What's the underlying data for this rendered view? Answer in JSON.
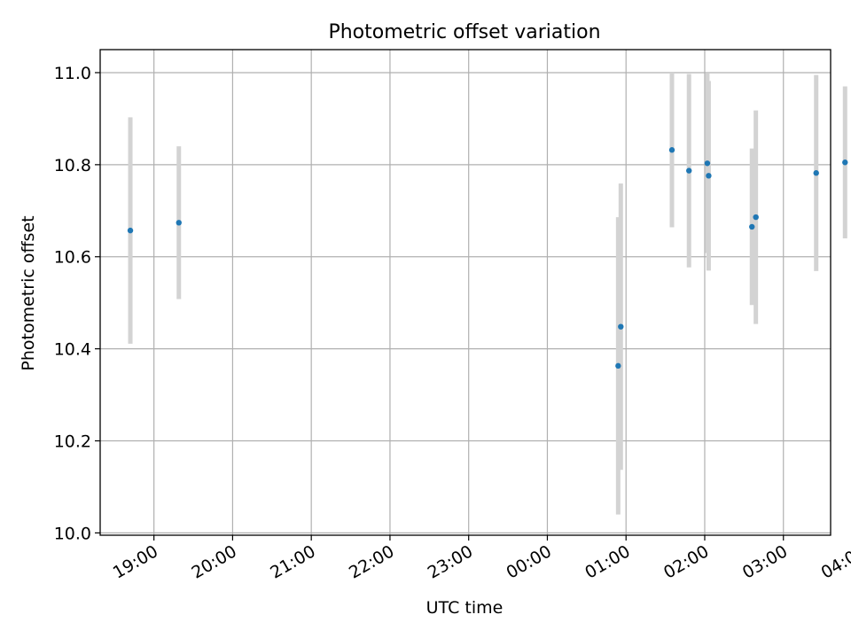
{
  "chart_data": {
    "type": "scatter",
    "title": "Photometric offset variation",
    "xlabel": "UTC time",
    "ylabel": "Photometric offset",
    "x_domain_minutes": [
      1099,
      1656
    ],
    "ylim": [
      9.995,
      11.05
    ],
    "x_ticks": [
      "19:00",
      "20:00",
      "21:00",
      "22:00",
      "23:00",
      "00:00",
      "01:00",
      "02:00",
      "03:00",
      "04:00"
    ],
    "y_ticks": [
      "10.0",
      "10.2",
      "10.4",
      "10.6",
      "10.8",
      "11.0"
    ],
    "grid": true,
    "marker_color": "#1f77b4",
    "errorbar_color": "#d3d3d3",
    "points": [
      {
        "time": "18:42",
        "y": 10.657,
        "err": 0.246
      },
      {
        "time": "19:19",
        "y": 10.674,
        "err": 0.166
      },
      {
        "time": "00:54",
        "y": 10.363,
        "err": 0.323
      },
      {
        "time": "00:56",
        "y": 10.448,
        "err": 0.311
      },
      {
        "time": "01:35",
        "y": 10.832,
        "err": 0.168
      },
      {
        "time": "01:48",
        "y": 10.787,
        "err": 0.21
      },
      {
        "time": "02:02",
        "y": 10.803,
        "err": 0.195
      },
      {
        "time": "02:03",
        "y": 10.776,
        "err": 0.206
      },
      {
        "time": "02:36",
        "y": 10.665,
        "err": 0.17
      },
      {
        "time": "02:39",
        "y": 10.686,
        "err": 0.232
      },
      {
        "time": "03:25",
        "y": 10.782,
        "err": 0.213
      },
      {
        "time": "03:47",
        "y": 10.805,
        "err": 0.165
      }
    ]
  }
}
